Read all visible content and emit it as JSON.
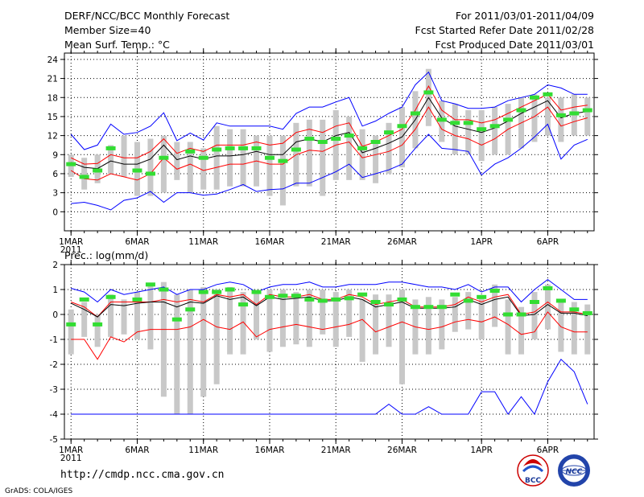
{
  "header": {
    "title": "DERF/NCC/BCC Monthly Forecast",
    "member_size": "Member Size=40",
    "variable": "Mean Surf. Temp.: °C",
    "period": "For 2011/03/01-2011/04/09",
    "started": "Fcst Started Refer Date 2011/02/28",
    "produced": "Fcst Produced Date 2011/03/01"
  },
  "footer": {
    "url": "http://cmdp.ncc.cma.gov.cn",
    "grads": "GrADS: COLA/IGES",
    "logo_left": "BCC",
    "logo_right": "NCC"
  },
  "colors": {
    "envelope": "#0000ff",
    "spread": "#ff0000",
    "mean": "#000000",
    "observed": "#33dd33",
    "box": "#c8c8c8",
    "grid": "#000000"
  },
  "chart_data": [
    {
      "type": "line",
      "title": "Mean Surf. Temp.: °C",
      "ylim": [
        -3,
        25
      ],
      "yticks": [
        0,
        3,
        6,
        9,
        12,
        15,
        18,
        21,
        24
      ],
      "xlim": [
        0.5,
        40.5
      ],
      "xticks": [
        {
          "day": 1,
          "label": "1MAR",
          "sub": "2011"
        },
        {
          "day": 6,
          "label": "6MAR"
        },
        {
          "day": 11,
          "label": "11MAR"
        },
        {
          "day": 16,
          "label": "16MAR"
        },
        {
          "day": 21,
          "label": "21MAR"
        },
        {
          "day": 26,
          "label": "26MAR"
        },
        {
          "day": 32,
          "label": "1APR"
        },
        {
          "day": 37,
          "label": "6APR"
        }
      ],
      "days": [
        1,
        2,
        3,
        4,
        5,
        6,
        7,
        8,
        9,
        10,
        11,
        12,
        13,
        14,
        15,
        16,
        17,
        18,
        19,
        20,
        21,
        22,
        23,
        24,
        25,
        26,
        27,
        28,
        29,
        30,
        31,
        32,
        33,
        34,
        35,
        36,
        37,
        38,
        39,
        40
      ],
      "series": [
        {
          "name": "max",
          "values": [
            12.2,
            9.8,
            10.5,
            13.8,
            12.2,
            12.5,
            13.5,
            15.6,
            11.2,
            12.4,
            11.3,
            14,
            13.5,
            13.5,
            13.5,
            13.5,
            13,
            15.5,
            16.5,
            16.5,
            17.3,
            18,
            13.5,
            14.3,
            15.5,
            16.5,
            20,
            22,
            17.5,
            17,
            16.3,
            16.3,
            16.5,
            17.5,
            18,
            18.5,
            20,
            19.5,
            18.5,
            18.5
          ]
        },
        {
          "name": "upper",
          "values": [
            8.5,
            7.5,
            7.6,
            9,
            8.5,
            8.5,
            9.5,
            11.5,
            9.2,
            10,
            9.5,
            10.5,
            10.5,
            10.5,
            11,
            10.5,
            10.8,
            12.5,
            13,
            12.5,
            13.5,
            14,
            10.3,
            11,
            12,
            13,
            16,
            19.8,
            16,
            14.5,
            14.5,
            14,
            14.5,
            15.5,
            16.5,
            17.5,
            18.5,
            16,
            16.5,
            16.8
          ]
        },
        {
          "name": "mean",
          "values": [
            7.8,
            7,
            6.8,
            8,
            7.5,
            7.5,
            8.3,
            10.5,
            8.2,
            8.8,
            8.3,
            8.8,
            8.8,
            9,
            9.5,
            9,
            9,
            11,
            11.5,
            11,
            12,
            12.5,
            9.3,
            10,
            10.8,
            11.8,
            14.5,
            18,
            14.8,
            13.5,
            13,
            12.5,
            13.2,
            14.3,
            15.5,
            16.5,
            17.5,
            14.8,
            15.5,
            15.8
          ]
        },
        {
          "name": "lower",
          "values": [
            6.5,
            5.2,
            5,
            6,
            5.5,
            5,
            6,
            8.5,
            6.7,
            7.5,
            6.5,
            7,
            7.5,
            7.5,
            8,
            7.5,
            7.5,
            9,
            9.7,
            9.5,
            10.5,
            11,
            8.5,
            9,
            9.5,
            10.5,
            13,
            16.5,
            13,
            12,
            11.5,
            10.5,
            11.5,
            13,
            14,
            15,
            16.5,
            13.5,
            14.2,
            14.8
          ]
        },
        {
          "name": "min",
          "values": [
            1.3,
            1.5,
            1,
            0.3,
            1.8,
            2.2,
            3.2,
            1.5,
            3,
            3,
            2.6,
            2.8,
            3.5,
            4.3,
            3.2,
            3.5,
            3.6,
            4.5,
            4.5,
            5.4,
            6.3,
            7.5,
            5.4,
            6,
            6.6,
            7.5,
            10,
            12.2,
            10,
            9.8,
            9.5,
            5.8,
            7.5,
            8.5,
            10,
            11.8,
            13.8,
            8.3,
            10.5,
            11.4
          ]
        },
        {
          "name": "observed",
          "values": [
            7.5,
            5.5,
            6.5,
            10,
            null,
            6.5,
            6,
            8.5,
            null,
            9.5,
            8.5,
            9.8,
            10,
            10,
            10,
            8.5,
            8,
            9.8,
            11.5,
            11,
            11.5,
            12,
            10,
            11,
            12.5,
            13.5,
            15.5,
            18.8,
            14.5,
            14,
            14,
            13,
            13.5,
            14.5,
            16,
            18,
            18.5,
            15.2,
            15.5,
            16
          ]
        }
      ],
      "boxes": [
        [
          5.5,
          9
        ],
        [
          3.5,
          8.5
        ],
        [
          4.5,
          9
        ],
        [
          6,
          10.5
        ],
        [
          5.5,
          12
        ],
        [
          2.5,
          11
        ],
        [
          2.5,
          11.5
        ],
        [
          3,
          12
        ],
        [
          5,
          11
        ],
        [
          3,
          11
        ],
        [
          3.5,
          10
        ],
        [
          3.5,
          13.5
        ],
        [
          4,
          13
        ],
        [
          4,
          13
        ],
        [
          4,
          12
        ],
        [
          2.5,
          12
        ],
        [
          1,
          12
        ],
        [
          4,
          14
        ],
        [
          4,
          14.5
        ],
        [
          2.5,
          14.5
        ],
        [
          5,
          16
        ],
        [
          5,
          15
        ],
        [
          5,
          13
        ],
        [
          4.5,
          12
        ],
        [
          6,
          14
        ],
        [
          7,
          16.5
        ],
        [
          10,
          19
        ],
        [
          13.5,
          22.5
        ],
        [
          11,
          17.5
        ],
        [
          9,
          17
        ],
        [
          9,
          16
        ],
        [
          8,
          16
        ],
        [
          9,
          16.5
        ],
        [
          9,
          17
        ],
        [
          10,
          18
        ],
        [
          11,
          18.5
        ],
        [
          12,
          18
        ],
        [
          11,
          18
        ],
        [
          12,
          18.5
        ],
        [
          12,
          18
        ]
      ]
    },
    {
      "type": "line",
      "title": "Prec.: log(mm/d)",
      "ylim": [
        -5,
        2
      ],
      "yticks": [
        -5,
        -4,
        -3,
        -2,
        -1,
        0,
        1,
        2
      ],
      "xlim": [
        0.5,
        40.5
      ],
      "xticks": [
        {
          "day": 1,
          "label": "1MAR",
          "sub": "2011"
        },
        {
          "day": 6,
          "label": "6MAR"
        },
        {
          "day": 11,
          "label": "11MAR"
        },
        {
          "day": 16,
          "label": "16MAR"
        },
        {
          "day": 21,
          "label": "21MAR"
        },
        {
          "day": 26,
          "label": "26MAR"
        },
        {
          "day": 32,
          "label": "1APR"
        },
        {
          "day": 37,
          "label": "6APR"
        }
      ],
      "days": [
        1,
        2,
        3,
        4,
        5,
        6,
        7,
        8,
        9,
        10,
        11,
        12,
        13,
        14,
        15,
        16,
        17,
        18,
        19,
        20,
        21,
        22,
        23,
        24,
        25,
        26,
        27,
        28,
        29,
        30,
        31,
        32,
        33,
        34,
        35,
        36,
        37,
        38,
        39,
        40
      ],
      "series": [
        {
          "name": "max",
          "values": [
            1.05,
            0.9,
            0.5,
            1,
            0.8,
            0.9,
            1,
            1.1,
            0.8,
            1,
            1,
            1.2,
            1.3,
            1.2,
            0.9,
            1.1,
            1.2,
            1.2,
            1.3,
            1.1,
            1.1,
            1.2,
            1.2,
            1.2,
            1.3,
            1.3,
            1.2,
            1.1,
            1.1,
            1,
            1.2,
            0.9,
            1.1,
            1.1,
            0.5,
            1,
            1.4,
            1,
            0.6,
            0.6
          ]
        },
        {
          "name": "upper",
          "values": [
            0.5,
            0.3,
            -0.1,
            0.5,
            0.5,
            0.5,
            0.5,
            0.6,
            0.5,
            0.6,
            0.5,
            0.8,
            0.7,
            0.8,
            0.4,
            0.8,
            0.7,
            0.7,
            0.8,
            0.6,
            0.6,
            0.8,
            0.7,
            0.4,
            0.5,
            0.6,
            0.3,
            0.3,
            0.3,
            0.4,
            0.7,
            0.5,
            0.7,
            0.8,
            0,
            0.1,
            0.5,
            0.1,
            0.1,
            0
          ]
        },
        {
          "name": "mean",
          "values": [
            0.45,
            0.2,
            -0.1,
            0.4,
            0.35,
            0.45,
            0.5,
            0.5,
            0.3,
            0.5,
            0.45,
            0.75,
            0.6,
            0.7,
            0.35,
            0.7,
            0.6,
            0.65,
            0.7,
            0.55,
            0.55,
            0.7,
            0.6,
            0.3,
            0.4,
            0.5,
            0.25,
            0.25,
            0.25,
            0.3,
            0.6,
            0.4,
            0.6,
            0.7,
            -0.05,
            0,
            0.4,
            0.05,
            0.05,
            -0.05
          ]
        },
        {
          "name": "lower",
          "values": [
            -1,
            -1,
            -1.8,
            -0.9,
            -1.1,
            -0.7,
            -0.6,
            -0.6,
            -0.6,
            -0.5,
            -0.2,
            -0.5,
            -0.6,
            -0.3,
            -0.9,
            -0.6,
            -0.5,
            -0.4,
            -0.5,
            -0.6,
            -0.5,
            -0.4,
            -0.2,
            -0.7,
            -0.5,
            -0.3,
            -0.5,
            -0.6,
            -0.5,
            -0.3,
            -0.2,
            -0.3,
            -0.1,
            -0.4,
            -0.8,
            -0.7,
            0.1,
            -0.5,
            -0.7,
            -0.7
          ]
        },
        {
          "name": "min",
          "values": [
            -4,
            -4,
            -4,
            -4,
            -4,
            -4,
            -4,
            -4,
            -4,
            -4,
            -4,
            -4,
            -4,
            -4,
            -4,
            -4,
            -4,
            -4,
            -4,
            -4,
            -4,
            -4,
            -4,
            -4,
            -3.6,
            -4,
            -4,
            -3.7,
            -4,
            -4,
            -4,
            -3.1,
            -3.1,
            -4,
            -3.3,
            -4,
            -2.7,
            -1.8,
            -2.3,
            -3.6
          ]
        },
        {
          "name": "observed",
          "values": [
            -0.4,
            0.6,
            -0.4,
            0.7,
            null,
            0.6,
            1.2,
            1,
            -0.2,
            0.2,
            0.9,
            0.9,
            1,
            0.4,
            0.9,
            0.7,
            0.75,
            0.75,
            0.6,
            0.55,
            0.6,
            0.65,
            0.8,
            0.5,
            0.4,
            0.6,
            0.3,
            0.3,
            0.3,
            0.8,
            0.55,
            0.7,
            0.95,
            0,
            0,
            0.5,
            1.05,
            0.55,
            0.2,
            0.05
          ]
        }
      ],
      "boxes": [
        [
          -1.6,
          0.2
        ],
        [
          -0.9,
          0.5
        ],
        [
          -1.3,
          0
        ],
        [
          -0.9,
          0.8
        ],
        [
          -0.8,
          0.6
        ],
        [
          -1,
          0.9
        ],
        [
          -1.4,
          1.2
        ],
        [
          -3.3,
          1.3
        ],
        [
          -4,
          0.8
        ],
        [
          -4,
          1
        ],
        [
          -3.3,
          1.1
        ],
        [
          -2.8,
          1
        ],
        [
          -1.6,
          1.1
        ],
        [
          -1.6,
          0.9
        ],
        [
          -1,
          0.9
        ],
        [
          -1.5,
          1
        ],
        [
          -1.3,
          1
        ],
        [
          -1.2,
          0.9
        ],
        [
          -1.3,
          1
        ],
        [
          -0.8,
          1
        ],
        [
          -1.3,
          0.9
        ],
        [
          -0.9,
          1
        ],
        [
          -1.9,
          0.6
        ],
        [
          -1.6,
          0.8
        ],
        [
          -1.3,
          0.8
        ],
        [
          -2.8,
          1
        ],
        [
          -1.6,
          0.6
        ],
        [
          -1.6,
          0.7
        ],
        [
          -1.4,
          0.6
        ],
        [
          -0.7,
          0.7
        ],
        [
          -0.6,
          0.9
        ],
        [
          -1,
          0.7
        ],
        [
          -0.5,
          1.2
        ],
        [
          -1.6,
          0.6
        ],
        [
          -1.6,
          0.3
        ],
        [
          -1,
          0.9
        ],
        [
          -0.6,
          1.2
        ],
        [
          -1.5,
          0.6
        ],
        [
          -1.6,
          0.5
        ],
        [
          -1.6,
          0.4
        ]
      ]
    }
  ]
}
